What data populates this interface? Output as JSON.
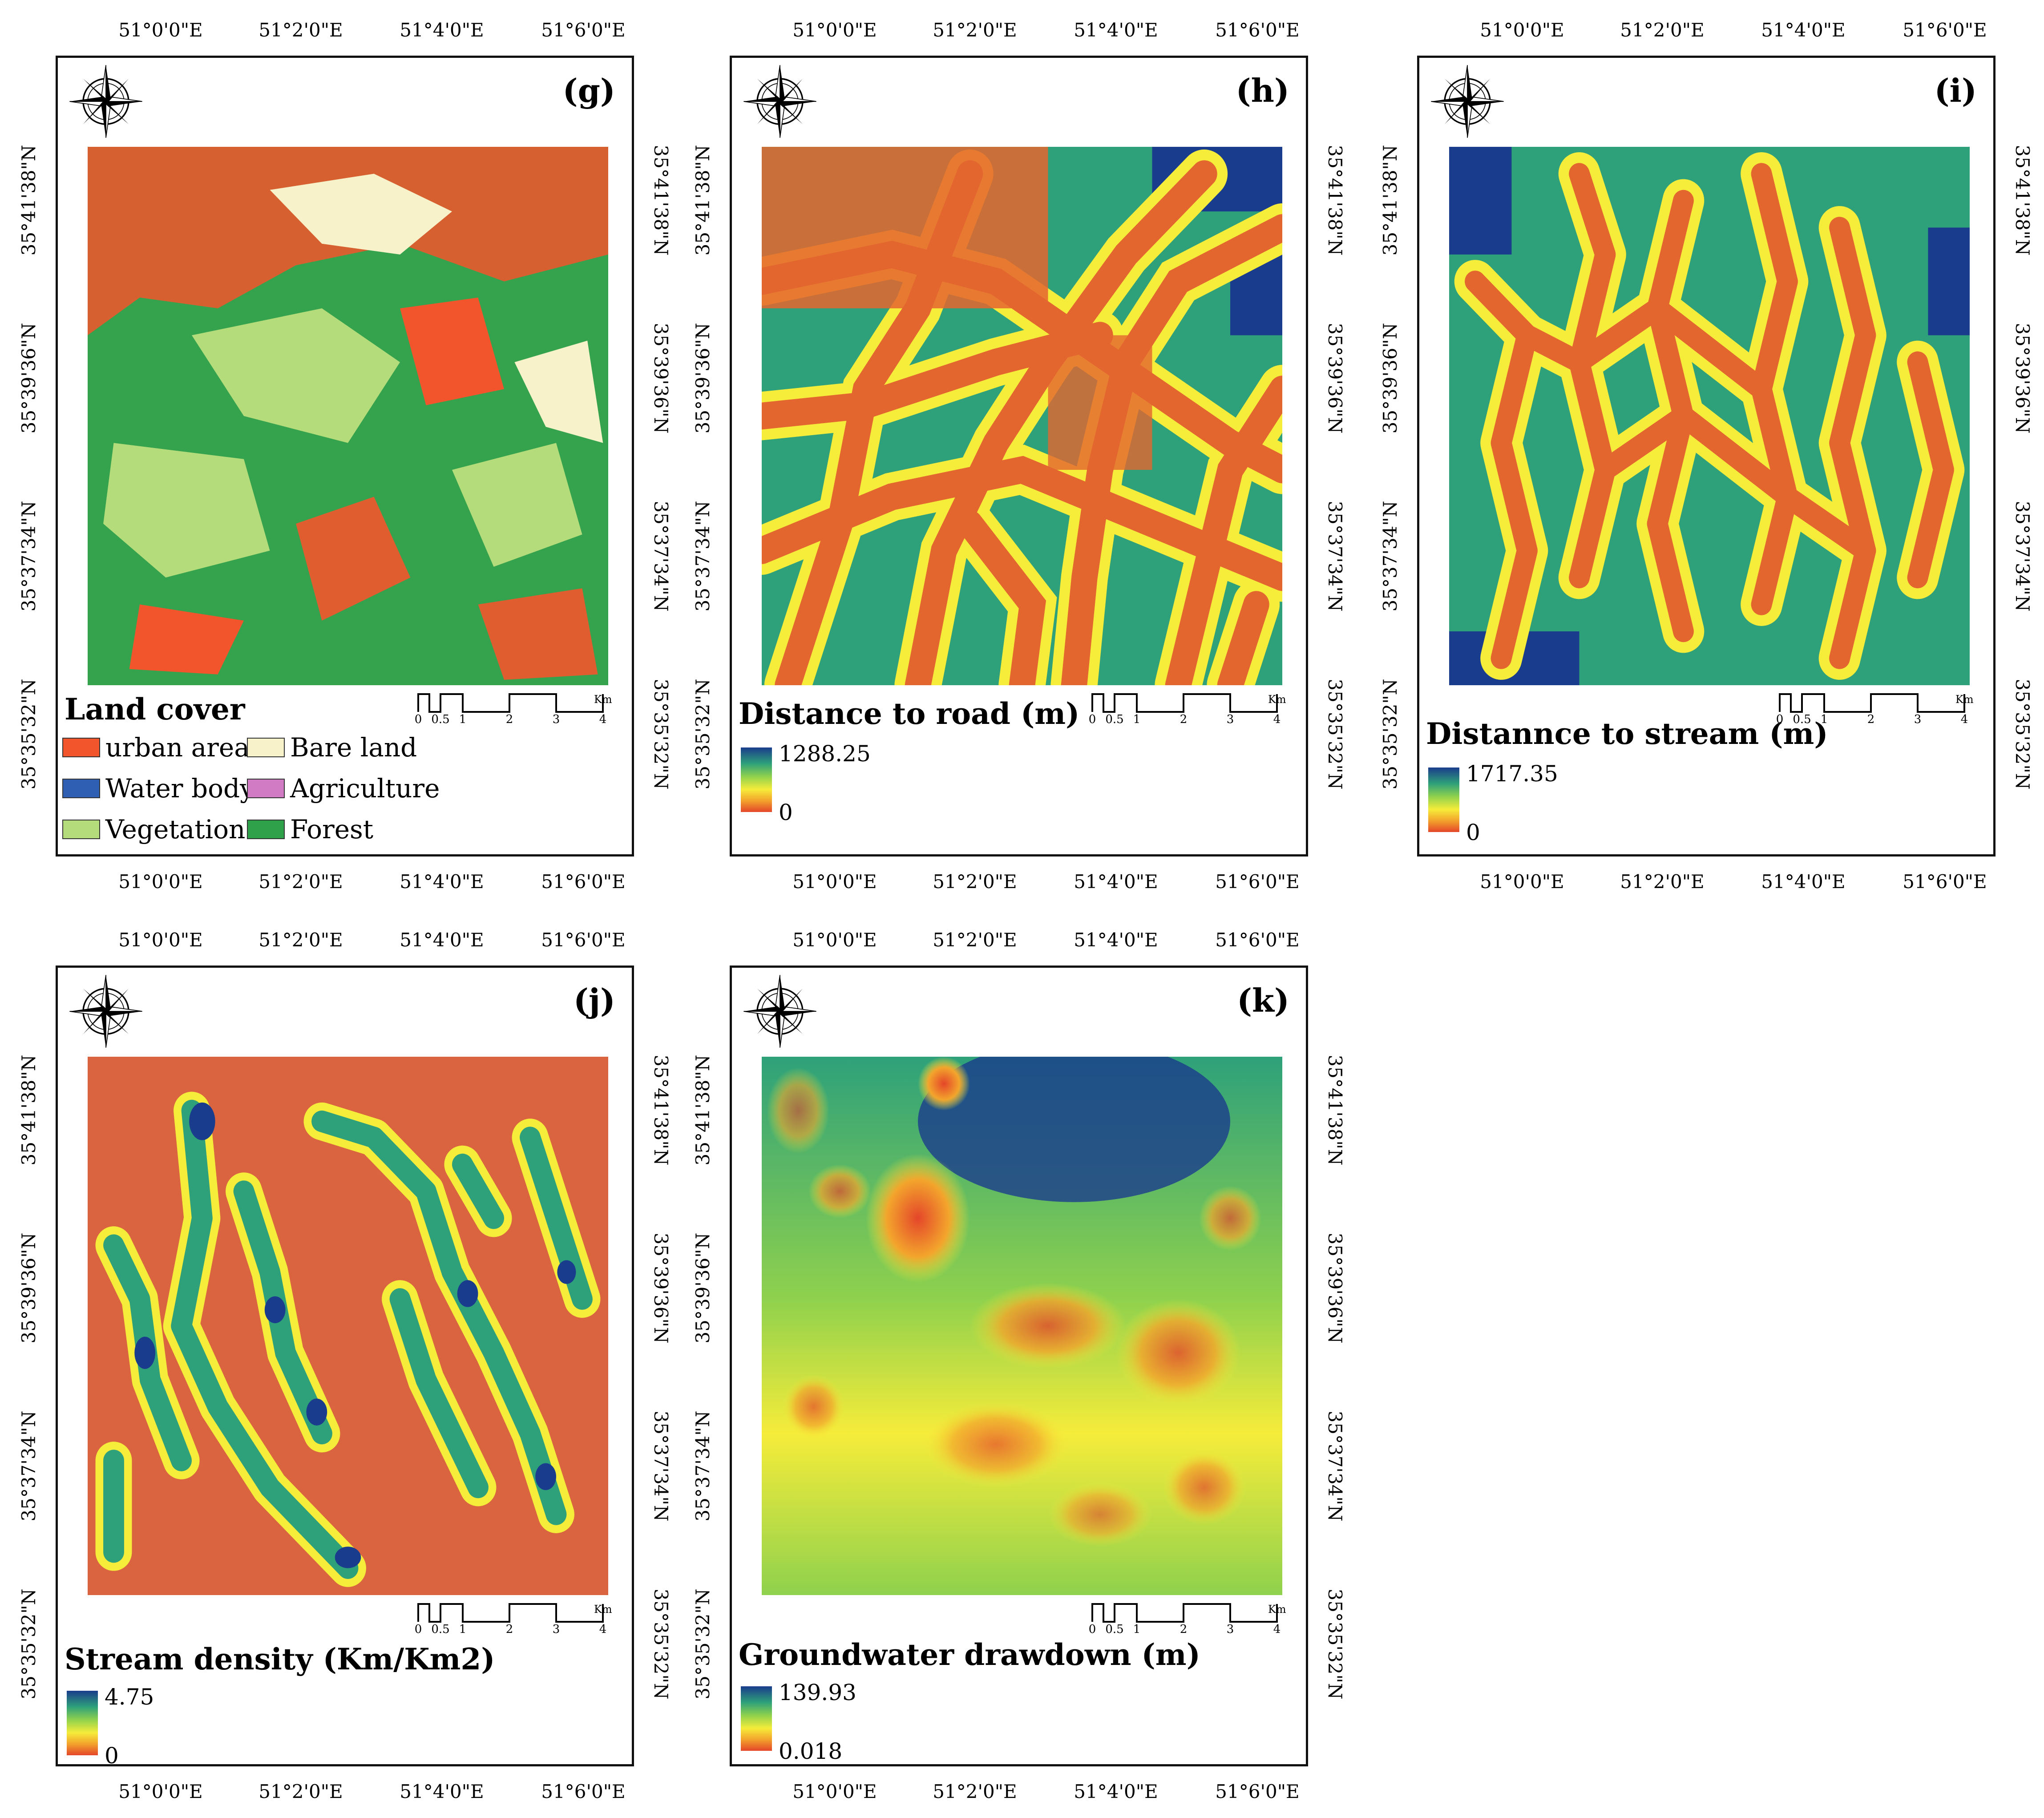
{
  "coords": {
    "lon_labels": [
      "51°0'0\"E",
      "51°2'0\"E",
      "51°4'0\"E",
      "51°6'0\"E"
    ],
    "lat_labels": [
      "35°41'38\"N",
      "35°39'36\"N",
      "35°37'34\"N",
      "35°35'32\"N"
    ]
  },
  "scalebar": {
    "ticks": [
      "0",
      "0.5",
      "1",
      "2",
      "3",
      "4"
    ],
    "unit": "Km"
  },
  "panels": {
    "g": {
      "letter": "(g)",
      "legend_title": "Land cover",
      "classes": [
        {
          "label": "urban areas",
          "color": "#f2552c"
        },
        {
          "label": "Bare land",
          "color": "#f7f2c9"
        },
        {
          "label": "Water body",
          "color": "#2f5fb3"
        },
        {
          "label": "Agriculture",
          "color": "#d07bc4"
        },
        {
          "label": "Vegetation",
          "color": "#b5dc7a"
        },
        {
          "label": "Forest",
          "color": "#2fa14a"
        }
      ]
    },
    "h": {
      "letter": "(h)",
      "title": "Distance to road (m)",
      "max": "1288.25",
      "min": "0"
    },
    "i": {
      "letter": "(i)",
      "title": "Distannce to stream (m)",
      "max": "1717.35",
      "min": "0"
    },
    "j": {
      "letter": "(j)",
      "title": "Stream density (Km/Km2)",
      "max": "4.75",
      "min": "0"
    },
    "k": {
      "letter": "(k)",
      "title": "Groundwater drawdown (m)",
      "max": "139.93",
      "min": "0.018"
    }
  },
  "colors": {
    "ramp_high": "#1a3c8c",
    "ramp_mid": "#f6ec3a",
    "ramp_low": "#e4462a"
  },
  "icons": [
    "compass-rose-icon"
  ]
}
